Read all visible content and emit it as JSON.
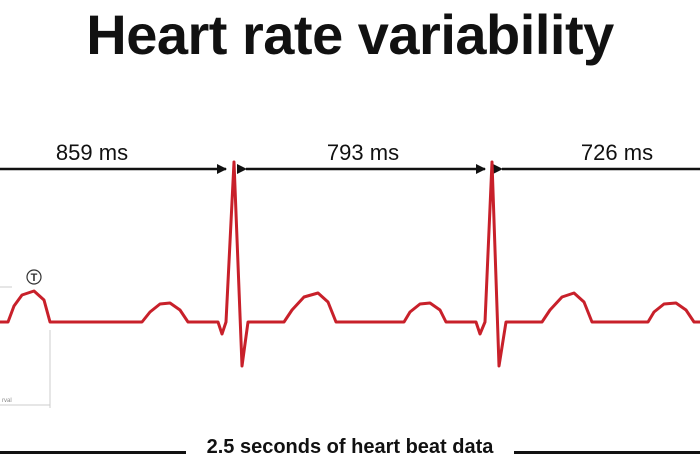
{
  "title": "Heart rate variability",
  "intervals": [
    {
      "label": "859 ms"
    },
    {
      "label": "793 ms"
    },
    {
      "label": "726 ms"
    }
  ],
  "t_wave_label": "T",
  "interval_fragment_label": "rval",
  "footer": "2.5 seconds of heart beat data",
  "colors": {
    "ecg": "#c8202a",
    "text": "#111111",
    "guide": "#cccccc"
  }
}
